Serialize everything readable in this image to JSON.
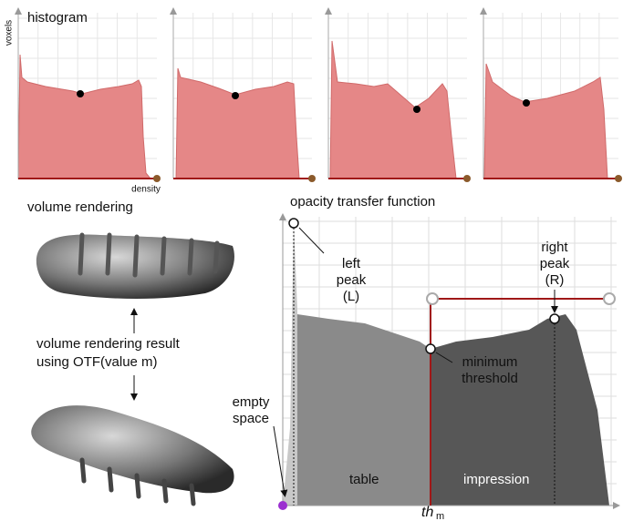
{
  "histogram_panel": {
    "title": "histogram",
    "y_axis_label": "voxels",
    "x_axis_label": "density"
  },
  "volume_rendering": {
    "title": "volume rendering",
    "caption_lines": [
      "volume rendering result",
      "using OTF(value m)"
    ]
  },
  "transfer_function": {
    "title": "opacity transfer function",
    "left_peak_lines": [
      "left",
      "peak",
      "(L)"
    ],
    "right_peak_lines": [
      "right",
      "peak",
      "(R)"
    ],
    "minimum_threshold_lines": [
      "minimum",
      "threshold"
    ],
    "empty_space_lines": [
      "empty",
      "space"
    ],
    "region_labels": [
      "table",
      "impression"
    ],
    "threshold_label": "th",
    "threshold_subscript": "m"
  }
}
